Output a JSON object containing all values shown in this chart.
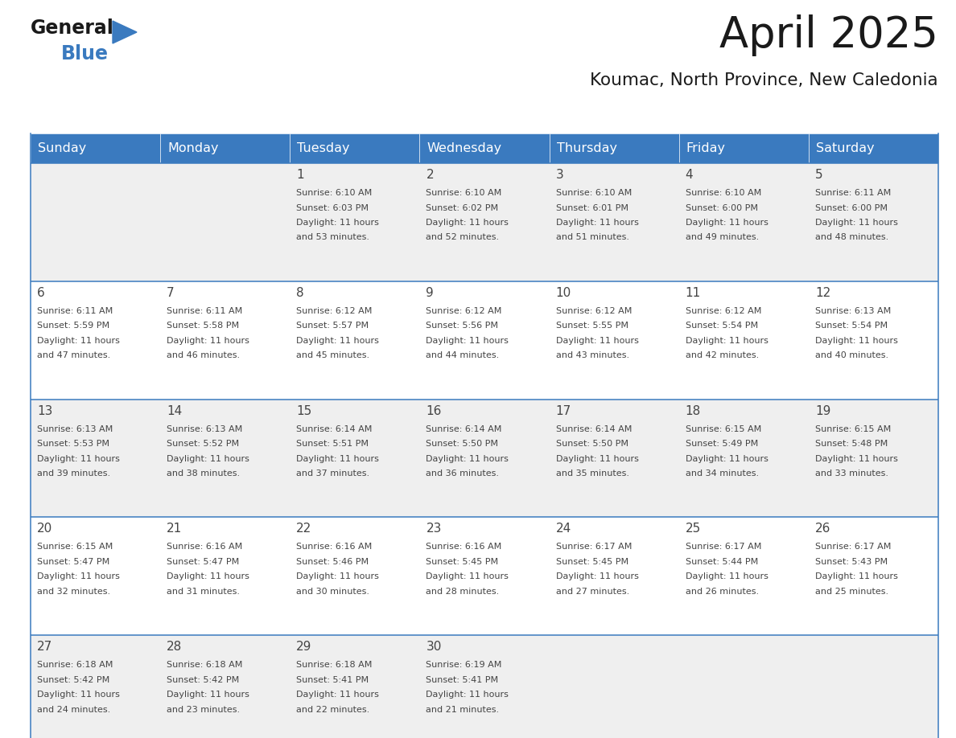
{
  "title": "April 2025",
  "subtitle": "Koumac, North Province, New Caledonia",
  "header_bg_color": "#3a7abf",
  "header_text_color": "#ffffff",
  "header_days": [
    "Sunday",
    "Monday",
    "Tuesday",
    "Wednesday",
    "Thursday",
    "Friday",
    "Saturday"
  ],
  "row_bg_even": "#efefef",
  "row_bg_odd": "#ffffff",
  "grid_line_color": "#3a7abf",
  "text_color": "#444444",
  "title_color": "#1a1a1a",
  "subtitle_color": "#1a1a1a",
  "logo_general_color": "#1a1a1a",
  "logo_blue_color": "#3a7abf",
  "days": [
    {
      "day": 1,
      "col": 2,
      "row": 0,
      "sunrise": "6:10 AM",
      "sunset": "6:03 PM",
      "daylight_line3": "Daylight: 11 hours",
      "daylight_line4": "and 53 minutes."
    },
    {
      "day": 2,
      "col": 3,
      "row": 0,
      "sunrise": "6:10 AM",
      "sunset": "6:02 PM",
      "daylight_line3": "Daylight: 11 hours",
      "daylight_line4": "and 52 minutes."
    },
    {
      "day": 3,
      "col": 4,
      "row": 0,
      "sunrise": "6:10 AM",
      "sunset": "6:01 PM",
      "daylight_line3": "Daylight: 11 hours",
      "daylight_line4": "and 51 minutes."
    },
    {
      "day": 4,
      "col": 5,
      "row": 0,
      "sunrise": "6:10 AM",
      "sunset": "6:00 PM",
      "daylight_line3": "Daylight: 11 hours",
      "daylight_line4": "and 49 minutes."
    },
    {
      "day": 5,
      "col": 6,
      "row": 0,
      "sunrise": "6:11 AM",
      "sunset": "6:00 PM",
      "daylight_line3": "Daylight: 11 hours",
      "daylight_line4": "and 48 minutes."
    },
    {
      "day": 6,
      "col": 0,
      "row": 1,
      "sunrise": "6:11 AM",
      "sunset": "5:59 PM",
      "daylight_line3": "Daylight: 11 hours",
      "daylight_line4": "and 47 minutes."
    },
    {
      "day": 7,
      "col": 1,
      "row": 1,
      "sunrise": "6:11 AM",
      "sunset": "5:58 PM",
      "daylight_line3": "Daylight: 11 hours",
      "daylight_line4": "and 46 minutes."
    },
    {
      "day": 8,
      "col": 2,
      "row": 1,
      "sunrise": "6:12 AM",
      "sunset": "5:57 PM",
      "daylight_line3": "Daylight: 11 hours",
      "daylight_line4": "and 45 minutes."
    },
    {
      "day": 9,
      "col": 3,
      "row": 1,
      "sunrise": "6:12 AM",
      "sunset": "5:56 PM",
      "daylight_line3": "Daylight: 11 hours",
      "daylight_line4": "and 44 minutes."
    },
    {
      "day": 10,
      "col": 4,
      "row": 1,
      "sunrise": "6:12 AM",
      "sunset": "5:55 PM",
      "daylight_line3": "Daylight: 11 hours",
      "daylight_line4": "and 43 minutes."
    },
    {
      "day": 11,
      "col": 5,
      "row": 1,
      "sunrise": "6:12 AM",
      "sunset": "5:54 PM",
      "daylight_line3": "Daylight: 11 hours",
      "daylight_line4": "and 42 minutes."
    },
    {
      "day": 12,
      "col": 6,
      "row": 1,
      "sunrise": "6:13 AM",
      "sunset": "5:54 PM",
      "daylight_line3": "Daylight: 11 hours",
      "daylight_line4": "and 40 minutes."
    },
    {
      "day": 13,
      "col": 0,
      "row": 2,
      "sunrise": "6:13 AM",
      "sunset": "5:53 PM",
      "daylight_line3": "Daylight: 11 hours",
      "daylight_line4": "and 39 minutes."
    },
    {
      "day": 14,
      "col": 1,
      "row": 2,
      "sunrise": "6:13 AM",
      "sunset": "5:52 PM",
      "daylight_line3": "Daylight: 11 hours",
      "daylight_line4": "and 38 minutes."
    },
    {
      "day": 15,
      "col": 2,
      "row": 2,
      "sunrise": "6:14 AM",
      "sunset": "5:51 PM",
      "daylight_line3": "Daylight: 11 hours",
      "daylight_line4": "and 37 minutes."
    },
    {
      "day": 16,
      "col": 3,
      "row": 2,
      "sunrise": "6:14 AM",
      "sunset": "5:50 PM",
      "daylight_line3": "Daylight: 11 hours",
      "daylight_line4": "and 36 minutes."
    },
    {
      "day": 17,
      "col": 4,
      "row": 2,
      "sunrise": "6:14 AM",
      "sunset": "5:50 PM",
      "daylight_line3": "Daylight: 11 hours",
      "daylight_line4": "and 35 minutes."
    },
    {
      "day": 18,
      "col": 5,
      "row": 2,
      "sunrise": "6:15 AM",
      "sunset": "5:49 PM",
      "daylight_line3": "Daylight: 11 hours",
      "daylight_line4": "and 34 minutes."
    },
    {
      "day": 19,
      "col": 6,
      "row": 2,
      "sunrise": "6:15 AM",
      "sunset": "5:48 PM",
      "daylight_line3": "Daylight: 11 hours",
      "daylight_line4": "and 33 minutes."
    },
    {
      "day": 20,
      "col": 0,
      "row": 3,
      "sunrise": "6:15 AM",
      "sunset": "5:47 PM",
      "daylight_line3": "Daylight: 11 hours",
      "daylight_line4": "and 32 minutes."
    },
    {
      "day": 21,
      "col": 1,
      "row": 3,
      "sunrise": "6:16 AM",
      "sunset": "5:47 PM",
      "daylight_line3": "Daylight: 11 hours",
      "daylight_line4": "and 31 minutes."
    },
    {
      "day": 22,
      "col": 2,
      "row": 3,
      "sunrise": "6:16 AM",
      "sunset": "5:46 PM",
      "daylight_line3": "Daylight: 11 hours",
      "daylight_line4": "and 30 minutes."
    },
    {
      "day": 23,
      "col": 3,
      "row": 3,
      "sunrise": "6:16 AM",
      "sunset": "5:45 PM",
      "daylight_line3": "Daylight: 11 hours",
      "daylight_line4": "and 28 minutes."
    },
    {
      "day": 24,
      "col": 4,
      "row": 3,
      "sunrise": "6:17 AM",
      "sunset": "5:45 PM",
      "daylight_line3": "Daylight: 11 hours",
      "daylight_line4": "and 27 minutes."
    },
    {
      "day": 25,
      "col": 5,
      "row": 3,
      "sunrise": "6:17 AM",
      "sunset": "5:44 PM",
      "daylight_line3": "Daylight: 11 hours",
      "daylight_line4": "and 26 minutes."
    },
    {
      "day": 26,
      "col": 6,
      "row": 3,
      "sunrise": "6:17 AM",
      "sunset": "5:43 PM",
      "daylight_line3": "Daylight: 11 hours",
      "daylight_line4": "and 25 minutes."
    },
    {
      "day": 27,
      "col": 0,
      "row": 4,
      "sunrise": "6:18 AM",
      "sunset": "5:42 PM",
      "daylight_line3": "Daylight: 11 hours",
      "daylight_line4": "and 24 minutes."
    },
    {
      "day": 28,
      "col": 1,
      "row": 4,
      "sunrise": "6:18 AM",
      "sunset": "5:42 PM",
      "daylight_line3": "Daylight: 11 hours",
      "daylight_line4": "and 23 minutes."
    },
    {
      "day": 29,
      "col": 2,
      "row": 4,
      "sunrise": "6:18 AM",
      "sunset": "5:41 PM",
      "daylight_line3": "Daylight: 11 hours",
      "daylight_line4": "and 22 minutes."
    },
    {
      "day": 30,
      "col": 3,
      "row": 4,
      "sunrise": "6:19 AM",
      "sunset": "5:41 PM",
      "daylight_line3": "Daylight: 11 hours",
      "daylight_line4": "and 21 minutes."
    }
  ]
}
